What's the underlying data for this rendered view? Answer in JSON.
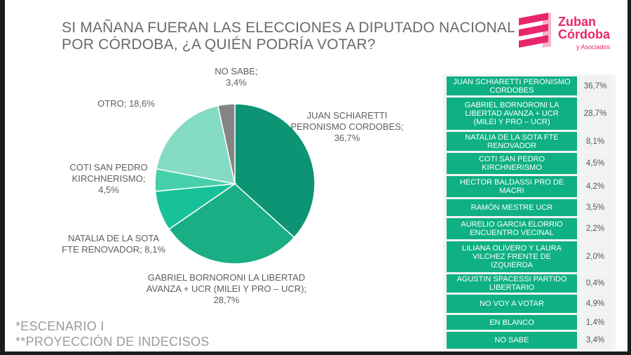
{
  "title_lines": [
    "SI MAÑANA FUERAN LAS ELECCIONES A DIPUTADO NACIONAL",
    "POR CÓRDOBA, ¿A QUIÉN PODRÍA VOTAR?"
  ],
  "logo": {
    "line1": "Zuban",
    "line2": "Córdoba",
    "sub": "y Asociados",
    "color": "#e8266d"
  },
  "chart_data": {
    "type": "pie",
    "title": "SI MAÑANA FUERAN LAS ELECCIONES A DIPUTADO NACIONAL POR CÓRDOBA, ¿A QUIÉN PODRÍA VOTAR?",
    "slices": [
      {
        "label": "JUAN SCHIARETTI PERONISMO CORDOBES",
        "value": 36.7,
        "color": "#0d9474"
      },
      {
        "label": "GABRIEL BORNORONI LA LIBERTAD AVANZA + UCR (MILEI Y PRO – UCR)",
        "value": 28.7,
        "color": "#1aae84"
      },
      {
        "label": "NATALIA DE LA SOTA FTE RENOVADOR",
        "value": 8.1,
        "color": "#19c19a"
      },
      {
        "label": "COTI SAN PEDRO KIRCHNERISMO",
        "value": 4.5,
        "color": "#46cfab"
      },
      {
        "label": "OTRO",
        "value": 18.6,
        "color": "#86dbc4"
      },
      {
        "label": "NO SABE",
        "value": 3.4,
        "color": "#848484"
      }
    ],
    "labels": [
      {
        "lines": [
          "NO SABE;",
          "3,4%"
        ]
      },
      {
        "lines": [
          "JUAN SCHIARETTI",
          "PERONISMO CORDOBES;",
          "36,7%"
        ]
      },
      {
        "lines": [
          "OTRO; 18,6%"
        ]
      },
      {
        "lines": [
          "COTI SAN PEDRO",
          "KIRCHNERISMO;",
          "4,5%"
        ]
      },
      {
        "lines": [
          "NATALIA DE LA SOTA",
          "FTE RENOVADOR; 8,1%"
        ]
      },
      {
        "lines": [
          "GABRIEL BORNORONI LA LIBERTAD",
          "AVANZA + UCR (MILEI Y PRO – UCR);",
          "28,7%"
        ]
      }
    ]
  },
  "table": {
    "rows": [
      {
        "name": [
          "JUAN SCHIARETTI PERONISMO",
          "CORDOBES"
        ],
        "value": "36,7%"
      },
      {
        "name": [
          "GABRIEL BORNORONI LA",
          "LIBERTAD AVANZA + UCR",
          "(MILEI Y PRO – UCR)"
        ],
        "value": "28,7%"
      },
      {
        "name": [
          "NATALIA DE LA SOTA FTE",
          "RENOVADOR"
        ],
        "value": "8,1%"
      },
      {
        "name": [
          "COTI SAN PEDRO",
          "KIRCHNERISMO"
        ],
        "value": "4,5%"
      },
      {
        "name": [
          "HECTOR BALDASSI PRO DE",
          "MACRI"
        ],
        "value": "4,2%"
      },
      {
        "name": [
          "RAMÓN MESTRE UCR"
        ],
        "value": "3,5%"
      },
      {
        "name": [
          "AURELIO GARCIA ELORRIO",
          "ENCUENTRO VECINAL"
        ],
        "value": "2,2%"
      },
      {
        "name": [
          "LILIANA OLIVERO Y LAURA",
          "VILCHEZ FRENTE DE",
          "IZQUIERDA"
        ],
        "value": "2,0%"
      },
      {
        "name": [
          "AGUSTIN SPACESSI PARTIDO",
          "LIBERTARIO"
        ],
        "value": "0,4%"
      },
      {
        "name": [
          "NO VOY A VOTAR"
        ],
        "value": "4,9%"
      },
      {
        "name": [
          "EN BLANCO"
        ],
        "value": "1,4%"
      },
      {
        "name": [
          "NO SABE"
        ],
        "value": "3,4%"
      }
    ]
  },
  "notes": [
    "*ESCENARIO I",
    "**PROYECCIÓN DE INDECISOS"
  ]
}
